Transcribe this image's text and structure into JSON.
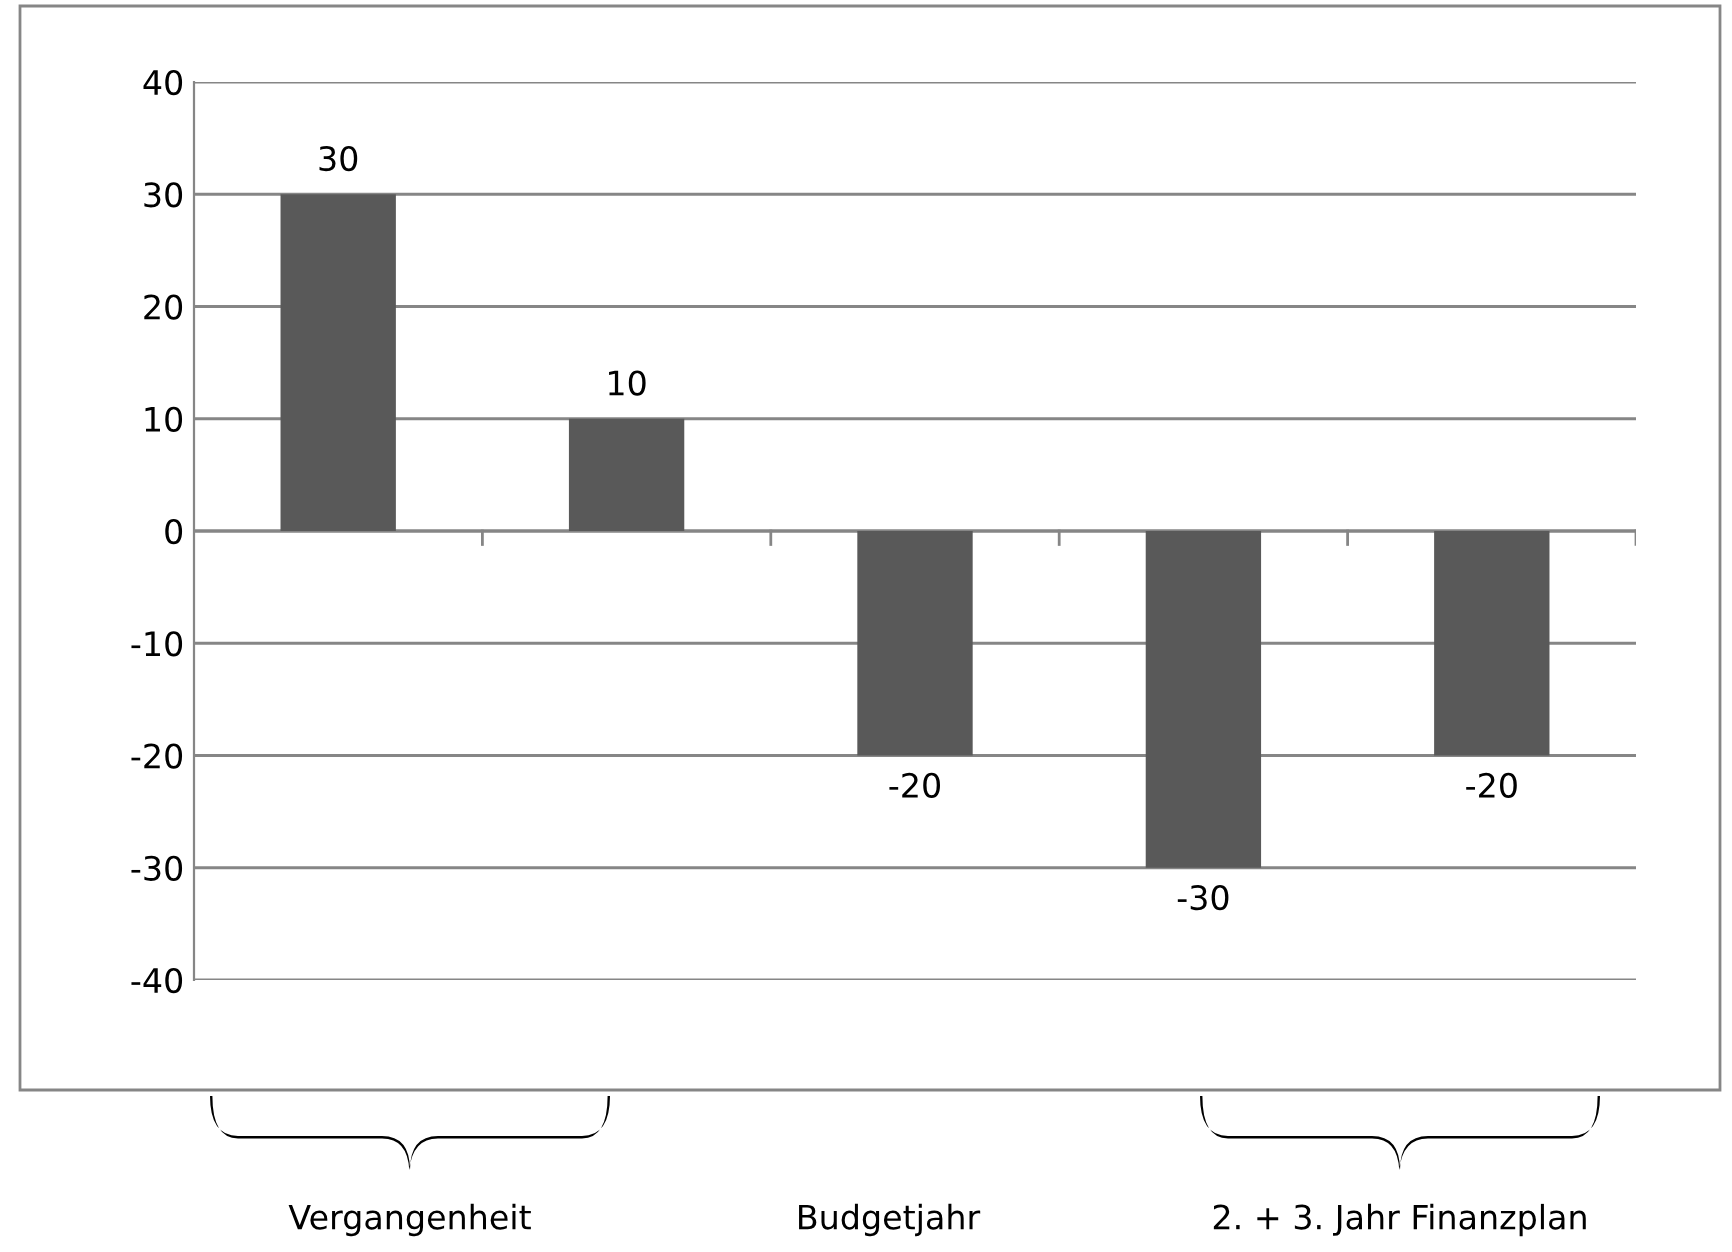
{
  "chart_data": {
    "type": "bar",
    "categories": [
      null,
      null,
      null,
      null,
      null
    ],
    "values": [
      30,
      10,
      -20,
      -30,
      -20
    ],
    "color": "#595959",
    "ylim": [
      -40,
      40
    ],
    "yticks": [
      -40,
      -30,
      -20,
      -10,
      0,
      10,
      20,
      30,
      40
    ],
    "grid": "y",
    "data_labels": true,
    "legend": false,
    "tick_labels": "y",
    "annotations": [
      "Vergangenheit",
      "Budgetjahr",
      "2. + 3. Jahr Finanzplan"
    ]
  }
}
